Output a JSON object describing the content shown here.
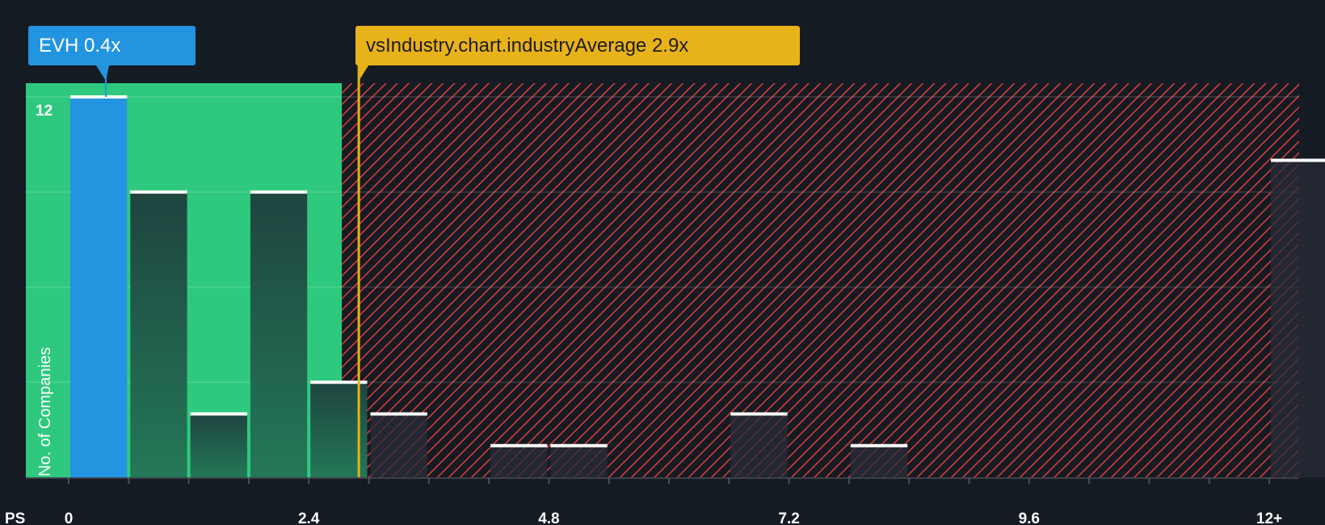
{
  "chart_data": {
    "type": "bar",
    "title": "",
    "xlabel": "PS",
    "ylabel": "No. of Companies",
    "bin_width": 0.6,
    "bins_start": [
      0,
      0.6,
      1.2,
      1.8,
      2.4,
      3.0,
      3.6,
      4.2,
      4.8,
      5.4,
      6.0,
      6.6,
      7.2,
      7.8,
      8.4,
      9.0,
      9.6,
      10.2,
      10.8,
      11.4,
      12
    ],
    "values": [
      12,
      9,
      2,
      9,
      3,
      2,
      0,
      1,
      1,
      0,
      0,
      2,
      0,
      1,
      0,
      0,
      0,
      0,
      0,
      0,
      10
    ],
    "x_ticks": [
      "0",
      "2.4",
      "4.8",
      "7.2",
      "9.6",
      "12+"
    ],
    "x_tick_values": [
      0,
      2.4,
      4.8,
      7.2,
      9.6,
      12
    ],
    "y_tick_labels": [
      "12"
    ],
    "ylim": [
      0,
      12.4
    ],
    "gridlines_y": [
      3,
      6,
      9,
      12
    ],
    "highlight_until": 2.73,
    "company": {
      "label": "EVH 0.4x",
      "value": 0.4
    },
    "industry": {
      "label": "vsIndustry.chart.industryAverage 2.9x",
      "value": 2.9
    },
    "colors": {
      "background": "#151b23",
      "good": "#2ec97e",
      "company": "#2394e0",
      "industry": "#e8b21a",
      "bad": "#e03c3c",
      "bar": "#1f4a3e"
    }
  }
}
